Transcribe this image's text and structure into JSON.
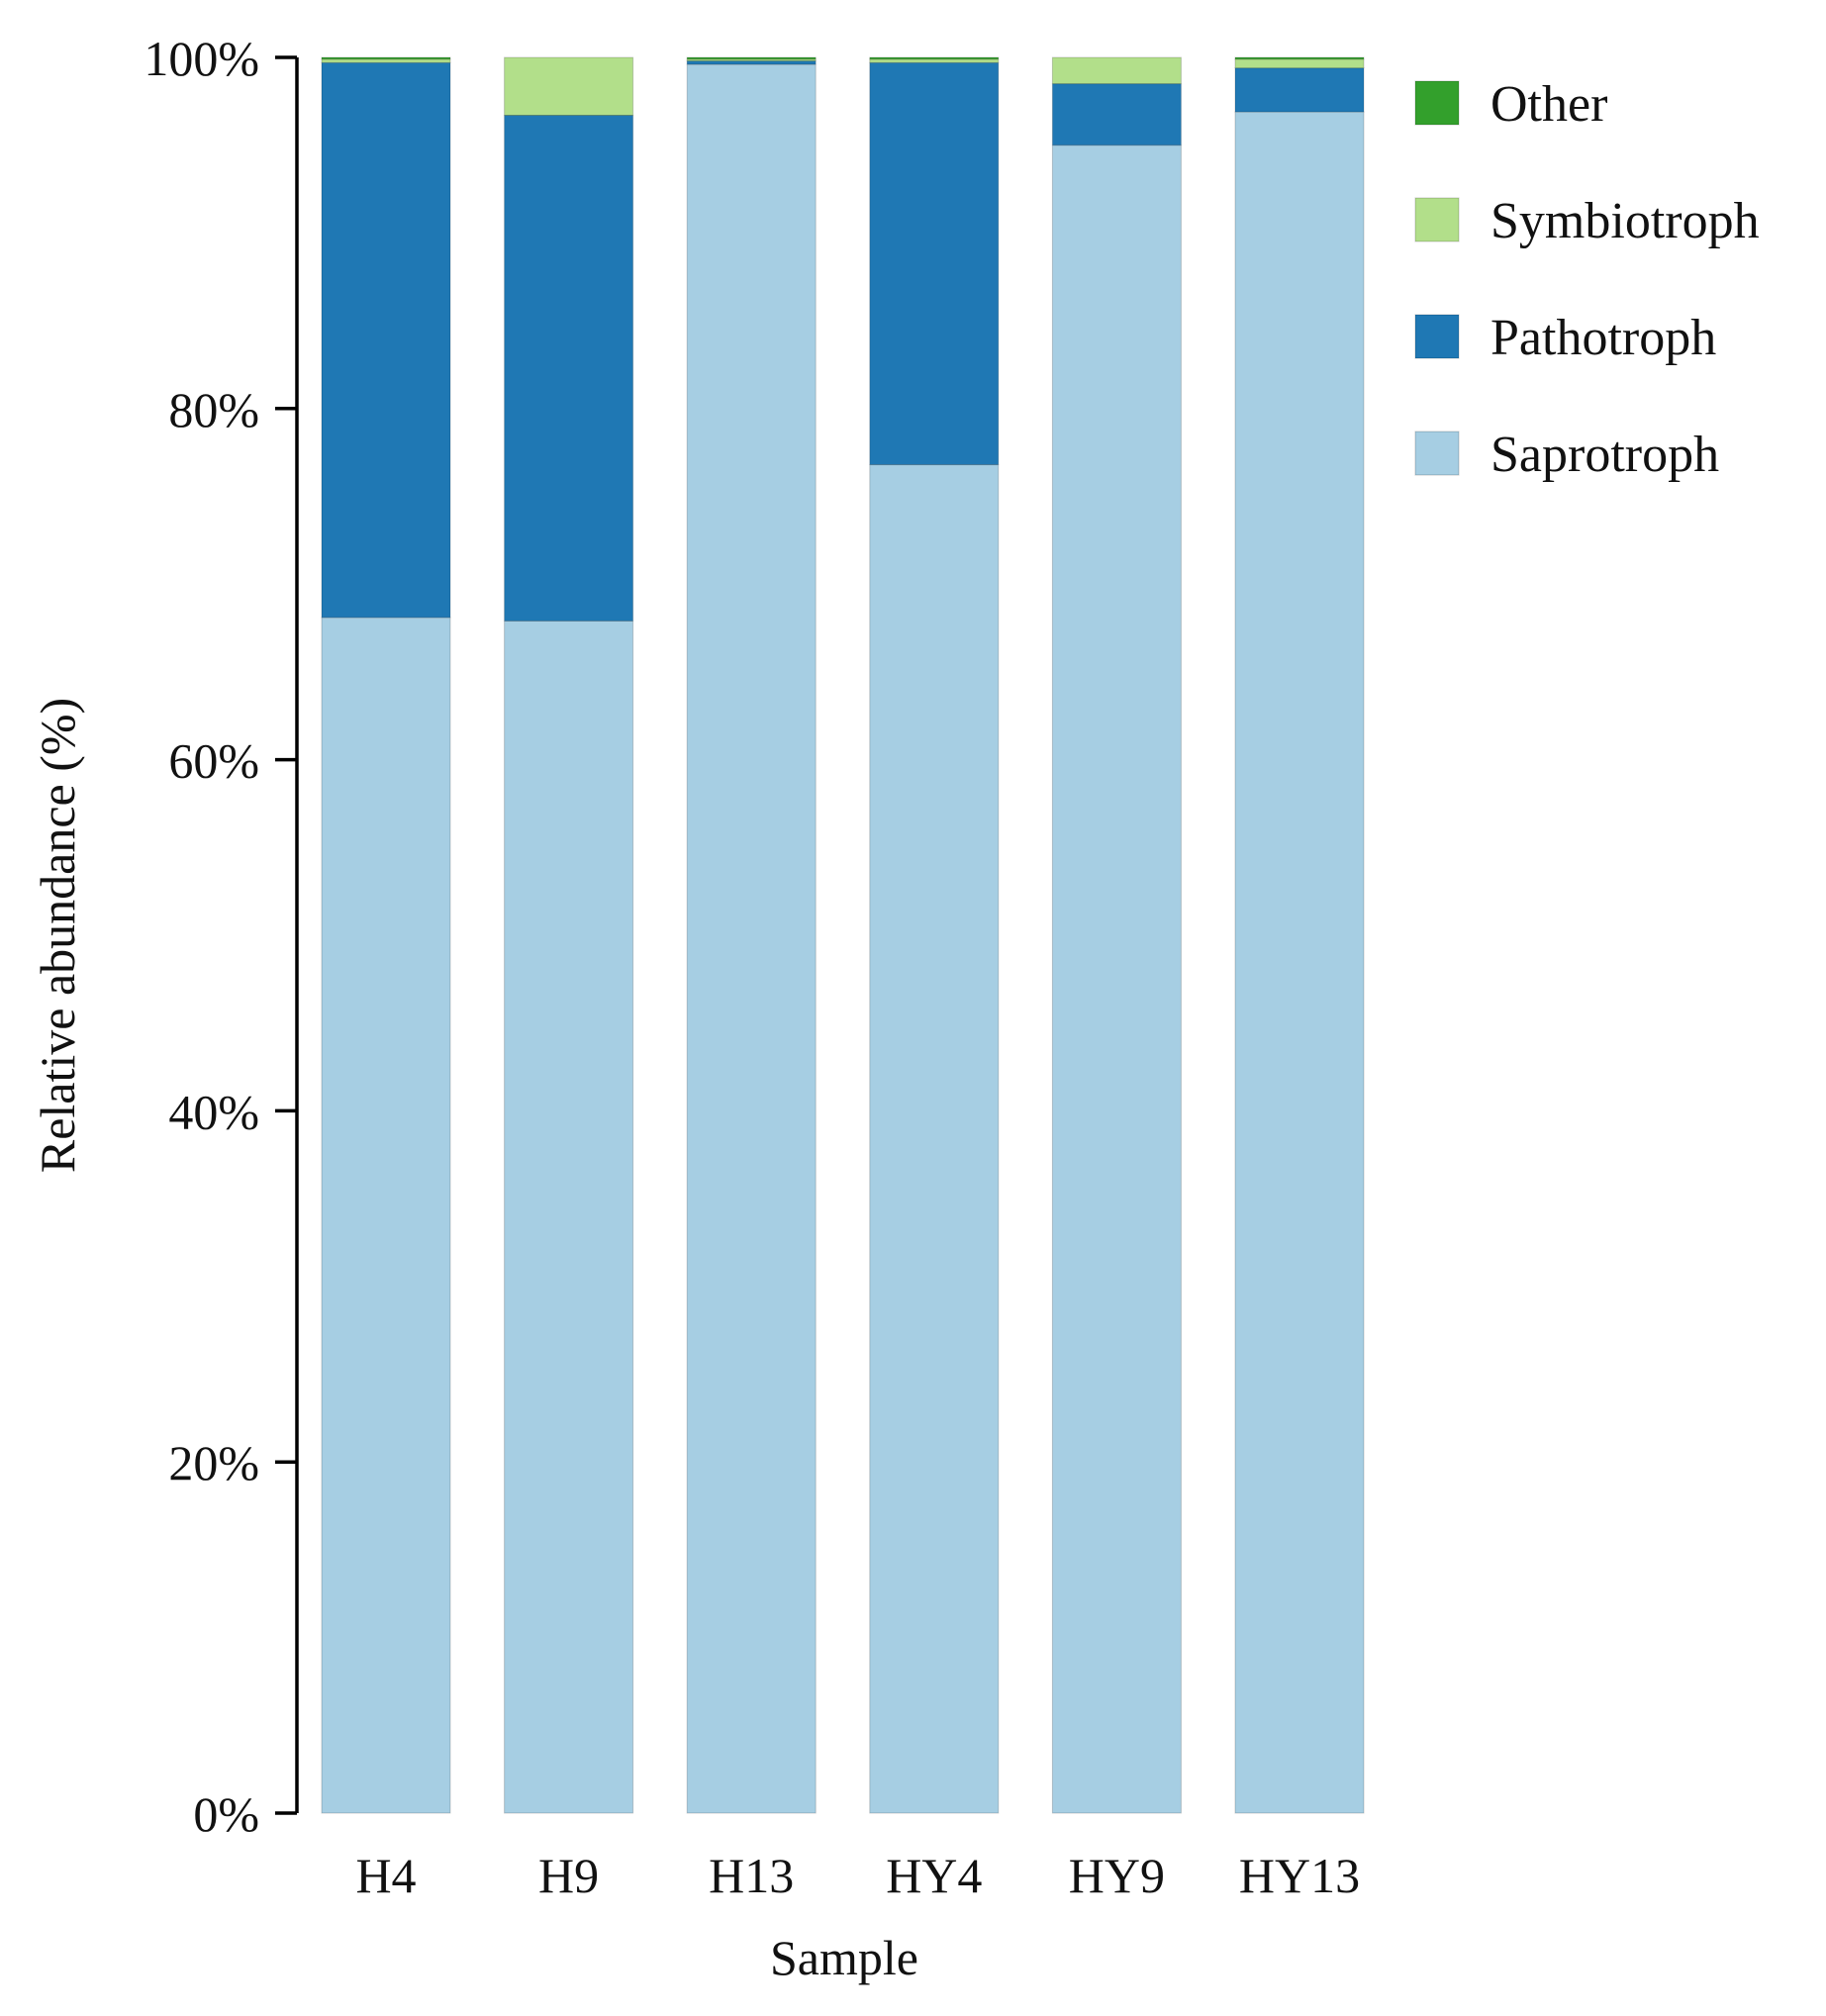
{
  "chart_data": {
    "type": "bar",
    "stacked": true,
    "title": "",
    "xlabel": "Sample",
    "ylabel": "Relative abundance (%)",
    "ylim": [
      0,
      100
    ],
    "yticks": [
      "0%",
      "20%",
      "40%",
      "60%",
      "80%",
      "100%"
    ],
    "ytick_values": [
      0,
      20,
      40,
      60,
      80,
      100
    ],
    "categories": [
      "H4",
      "H9",
      "H13",
      "HY4",
      "HY9",
      "HY13"
    ],
    "series": [
      {
        "name": "Saprotroph",
        "color": "#a6cee3",
        "values": [
          68.1,
          67.9,
          99.6,
          76.8,
          95.0,
          96.9
        ]
      },
      {
        "name": "Pathotroph",
        "color": "#1f78b4",
        "values": [
          31.6,
          28.8,
          0.2,
          22.9,
          3.5,
          2.5
        ]
      },
      {
        "name": "Symbiotroph",
        "color": "#b2df8a",
        "values": [
          0.2,
          3.3,
          0.1,
          0.2,
          1.5,
          0.5
        ]
      },
      {
        "name": "Other",
        "color": "#33a02c",
        "values": [
          0.1,
          0.0,
          0.1,
          0.1,
          0.0,
          0.1
        ]
      }
    ],
    "legend": {
      "position": "top-right",
      "order": [
        "Other",
        "Symbiotroph",
        "Pathotroph",
        "Saprotroph"
      ]
    }
  }
}
